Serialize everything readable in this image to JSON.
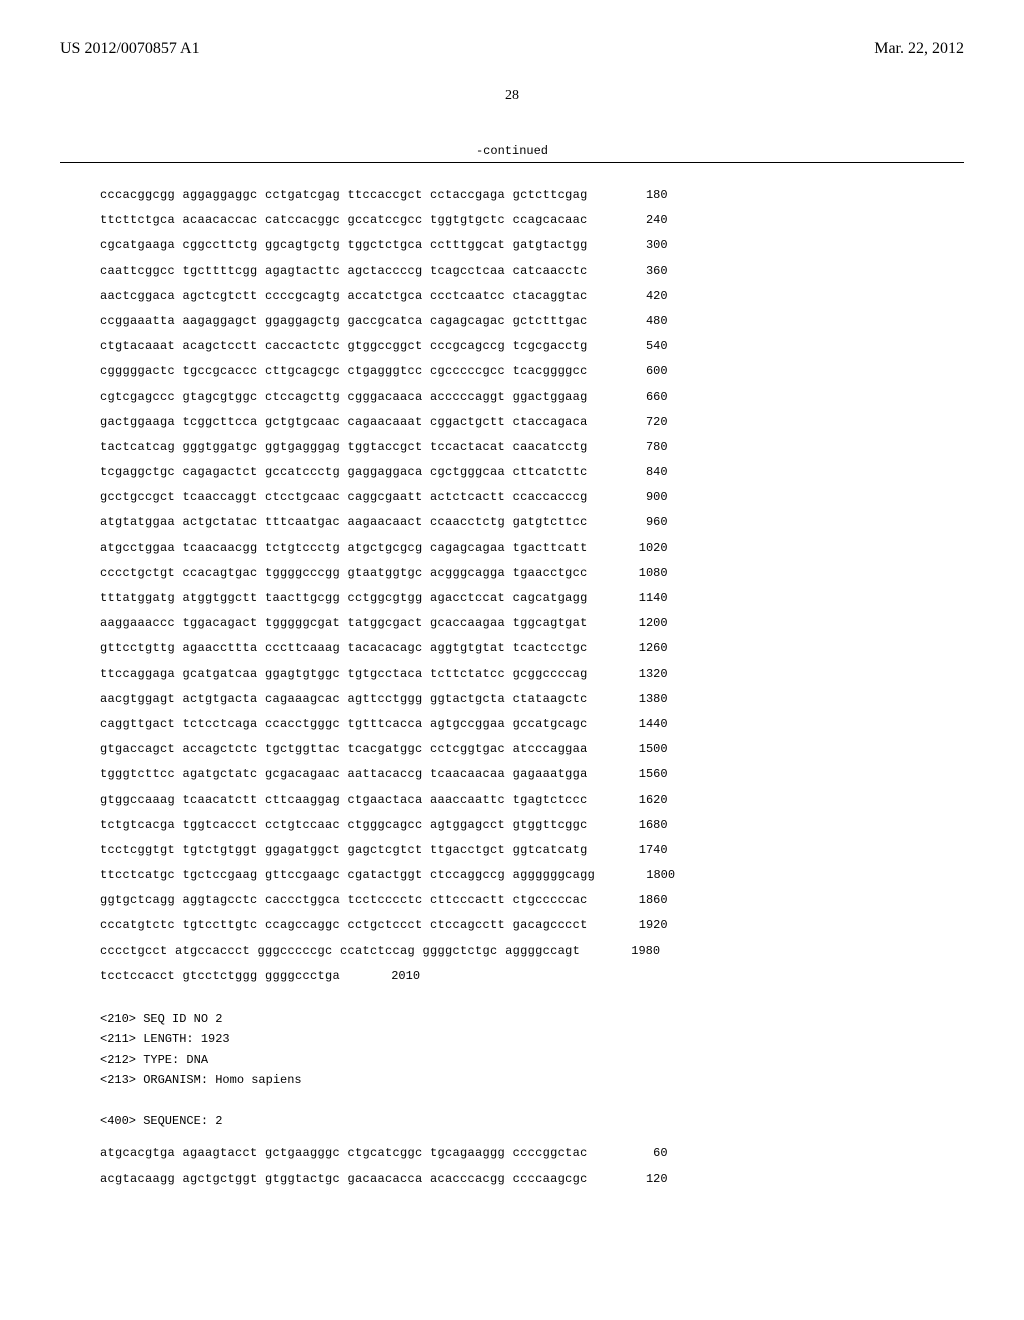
{
  "header": {
    "pub_number": "US 2012/0070857 A1",
    "pub_date": "Mar. 22, 2012"
  },
  "page_number": "28",
  "continued_label": "-continued",
  "sequence1": {
    "rows": [
      {
        "seq": "cccacggcgg aggaggaggc cctgatcgag ttccaccgct cctaccgaga gctcttcgag",
        "pos": "180"
      },
      {
        "seq": "ttcttctgca acaacaccac catccacggc gccatccgcc tggtgtgctc ccagcacaac",
        "pos": "240"
      },
      {
        "seq": "cgcatgaaga cggccttctg ggcagtgctg tggctctgca cctttggcat gatgtactgg",
        "pos": "300"
      },
      {
        "seq": "caattcggcc tgcttttcgg agagtacttc agctaccccg tcagcctcaa catcaacctc",
        "pos": "360"
      },
      {
        "seq": "aactcggaca agctcgtctt ccccgcagtg accatctgca ccctcaatcc ctacaggtac",
        "pos": "420"
      },
      {
        "seq": "ccggaaatta aagaggagct ggaggagctg gaccgcatca cagagcagac gctctttgac",
        "pos": "480"
      },
      {
        "seq": "ctgtacaaat acagctcctt caccactctc gtggccggct cccgcagccg tcgcgacctg",
        "pos": "540"
      },
      {
        "seq": "cgggggactc tgccgcaccc cttgcagcgc ctgagggtcc cgcccccgcc tcacggggcc",
        "pos": "600"
      },
      {
        "seq": "cgtcgagccc gtagcgtggc ctccagcttg cgggacaaca acccccaggt ggactggaag",
        "pos": "660"
      },
      {
        "seq": "gactggaaga tcggcttcca gctgtgcaac cagaacaaat cggactgctt ctaccagaca",
        "pos": "720"
      },
      {
        "seq": "tactcatcag gggtggatgc ggtgagggag tggtaccgct tccactacat caacatcctg",
        "pos": "780"
      },
      {
        "seq": "tcgaggctgc cagagactct gccatccctg gaggaggaca cgctgggcaa cttcatcttc",
        "pos": "840"
      },
      {
        "seq": "gcctgccgct tcaaccaggt ctcctgcaac caggcgaatt actctcactt ccaccacccg",
        "pos": "900"
      },
      {
        "seq": "atgtatggaa actgctatac tttcaatgac aagaacaact ccaacctctg gatgtcttcc",
        "pos": "960"
      },
      {
        "seq": "atgcctggaa tcaacaacgg tctgtccctg atgctgcgcg cagagcagaa tgacttcatt",
        "pos": "1020"
      },
      {
        "seq": "cccctgctgt ccacagtgac tggggcccgg gtaatggtgc acgggcagga tgaacctgcc",
        "pos": "1080"
      },
      {
        "seq": "tttatggatg atggtggctt taacttgcgg cctggcgtgg agacctccat cagcatgagg",
        "pos": "1140"
      },
      {
        "seq": "aaggaaaccc tggacagact tgggggcgat tatggcgact gcaccaagaa tggcagtgat",
        "pos": "1200"
      },
      {
        "seq": "gttcctgttg agaaccttta cccttcaaag tacacacagc aggtgtgtat tcactcctgc",
        "pos": "1260"
      },
      {
        "seq": "ttccaggaga gcatgatcaa ggagtgtggc tgtgcctaca tcttctatcc gcggccccag",
        "pos": "1320"
      },
      {
        "seq": "aacgtggagt actgtgacta cagaaagcac agttcctggg ggtactgcta ctataagctc",
        "pos": "1380"
      },
      {
        "seq": "caggttgact tctcctcaga ccacctgggc tgtttcacca agtgccggaa gccatgcagc",
        "pos": "1440"
      },
      {
        "seq": "gtgaccagct accagctctc tgctggttac tcacgatggc cctcggtgac atcccaggaa",
        "pos": "1500"
      },
      {
        "seq": "tgggtcttcc agatgctatc gcgacagaac aattacaccg tcaacaacaa gagaaatgga",
        "pos": "1560"
      },
      {
        "seq": "gtggccaaag tcaacatctt cttcaaggag ctgaactaca aaaccaattc tgagtctccc",
        "pos": "1620"
      },
      {
        "seq": "tctgtcacga tggtcaccct cctgtccaac ctgggcagcc agtggagcct gtggttcggc",
        "pos": "1680"
      },
      {
        "seq": "tcctcggtgt tgtctgtggt ggagatggct gagctcgtct ttgacctgct ggtcatcatg",
        "pos": "1740"
      },
      {
        "seq": "ttcctcatgc tgctccgaag gttccgaagc cgatactggt ctccaggccg aggggggcagg",
        "pos": "1800"
      },
      {
        "seq": "ggtgctcagg aggtagcctc caccctggca tcctcccctc cttcccactt ctgcccccac",
        "pos": "1860"
      },
      {
        "seq": "cccatgtctc tgtccttgtc ccagccaggc cctgctccct ctccagcctt gacagcccct",
        "pos": "1920"
      },
      {
        "seq": "cccctgcct atgccaccct gggcccccgc ccatctccag ggggctctgc aggggccagt",
        "pos": "1980"
      },
      {
        "seq": "tcctccacct gtcctctggg ggggccctga",
        "pos": "2010"
      }
    ]
  },
  "meta2": {
    "lines": [
      "<210> SEQ ID NO 2",
      "<211> LENGTH: 1923",
      "<212> TYPE: DNA",
      "<213> ORGANISM: Homo sapiens",
      "",
      "<400> SEQUENCE: 2"
    ]
  },
  "sequence2": {
    "rows": [
      {
        "seq": "atgcacgtga agaagtacct gctgaagggc ctgcatcggc tgcagaaggg ccccggctac",
        "pos": "60"
      },
      {
        "seq": "acgtacaagg agctgctggt gtggtactgc gacaacacca acacccacgg ccccaagcgc",
        "pos": "120"
      }
    ]
  }
}
